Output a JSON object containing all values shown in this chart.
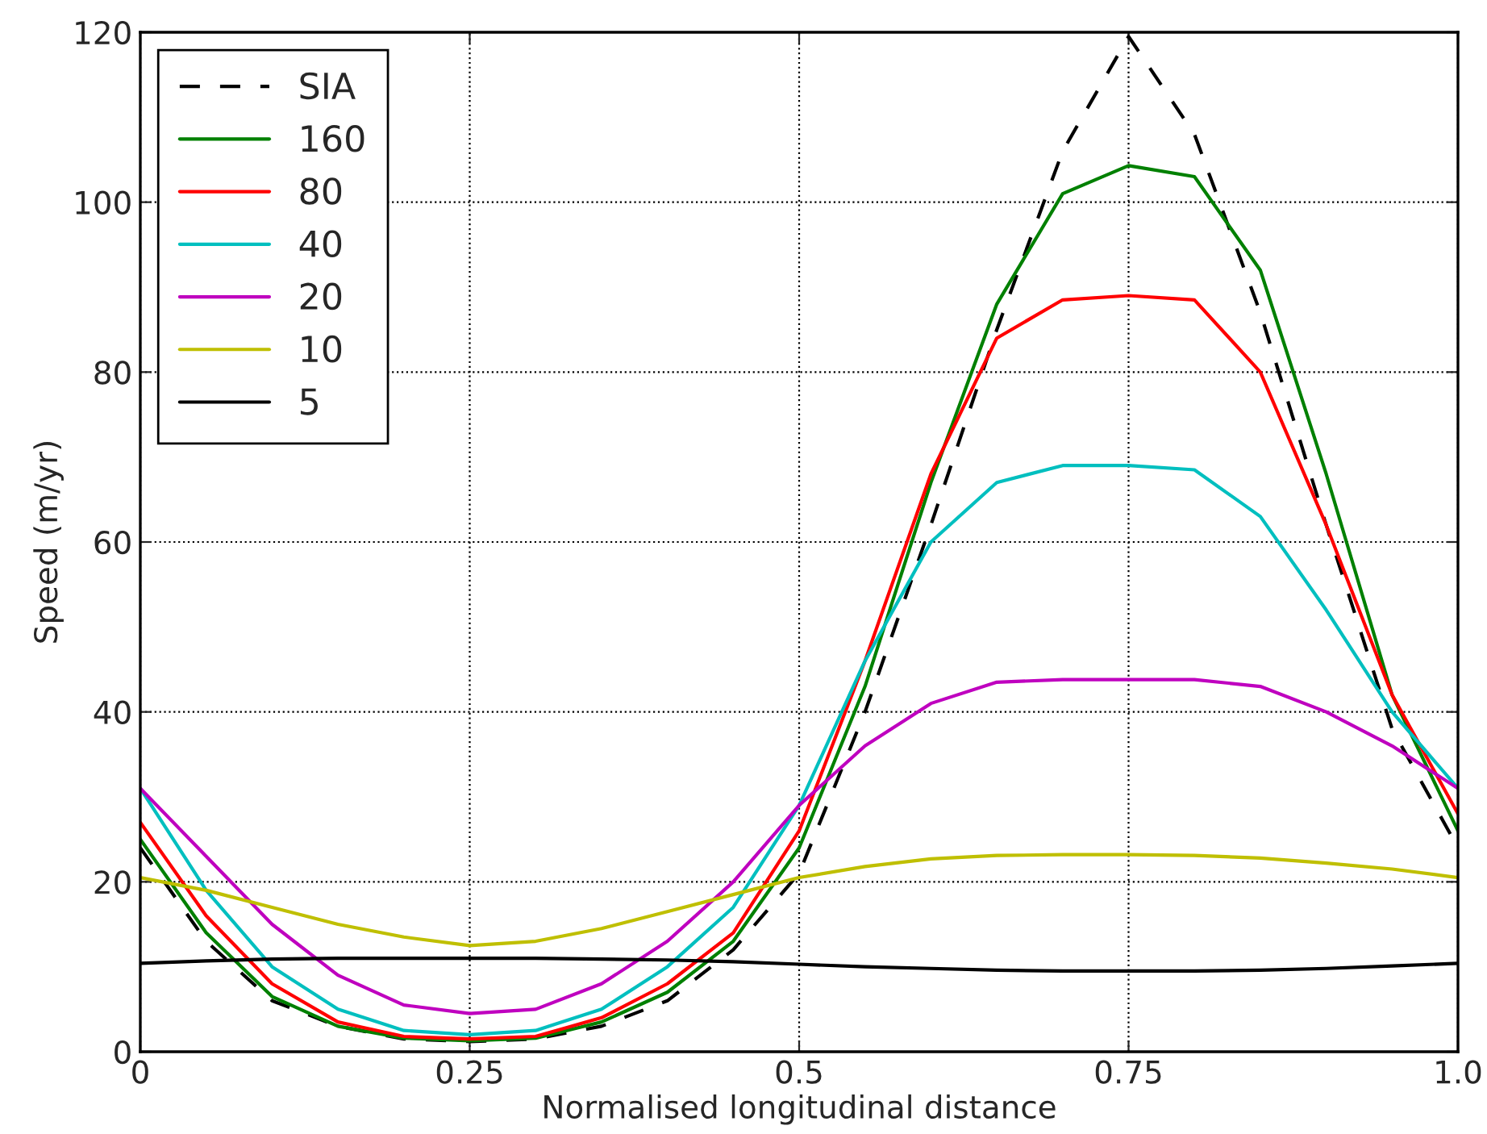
{
  "chart_data": {
    "type": "line",
    "xlabel": "Normalised longitudinal distance",
    "ylabel": "Speed (m/yr)",
    "x": [
      0,
      0.05,
      0.1,
      0.15,
      0.2,
      0.25,
      0.3,
      0.35,
      0.4,
      0.45,
      0.5,
      0.55,
      0.6,
      0.65,
      0.7,
      0.75,
      0.8,
      0.85,
      0.9,
      0.95,
      1.0
    ],
    "series": [
      {
        "name": "SIA",
        "color": "#000000",
        "line_style": "dashed",
        "values": [
          24,
          13,
          6,
          3,
          1.5,
          1.2,
          1.5,
          3,
          6,
          12,
          21,
          40,
          62,
          85,
          106,
          119.5,
          108,
          87,
          62,
          38,
          24
        ]
      },
      {
        "name": "160",
        "color": "#008000",
        "values": [
          25,
          14,
          6.5,
          3,
          1.6,
          1.3,
          1.6,
          3.5,
          7,
          13,
          24,
          43,
          67,
          88,
          101,
          104.3,
          103,
          92,
          68,
          42,
          26
        ]
      },
      {
        "name": "80",
        "color": "#ff0000",
        "values": [
          27,
          16,
          8,
          3.5,
          1.8,
          1.5,
          1.8,
          4,
          8,
          14,
          26,
          46,
          68,
          84,
          88.5,
          89,
          88.5,
          80,
          62,
          42,
          28
        ]
      },
      {
        "name": "40",
        "color": "#00bfbf",
        "values": [
          31,
          19,
          10,
          5,
          2.5,
          2,
          2.5,
          5,
          10,
          17,
          29,
          46,
          60,
          67,
          69,
          69,
          68.5,
          63,
          52,
          40,
          31
        ]
      },
      {
        "name": "20",
        "color": "#bf00bf",
        "values": [
          31,
          23,
          15,
          9,
          5.5,
          4.5,
          5,
          8,
          13,
          20,
          29,
          36,
          41,
          43.5,
          43.8,
          43.8,
          43.8,
          43,
          40,
          36,
          31
        ]
      },
      {
        "name": "10",
        "color": "#bfbf00",
        "values": [
          20.5,
          19,
          17,
          15,
          13.5,
          12.5,
          13,
          14.5,
          16.5,
          18.5,
          20.5,
          21.8,
          22.7,
          23.1,
          23.2,
          23.2,
          23.1,
          22.8,
          22.2,
          21.5,
          20.5
        ]
      },
      {
        "name": "5",
        "color": "#000000",
        "values": [
          10.4,
          10.7,
          10.9,
          11,
          11,
          11,
          11,
          10.9,
          10.8,
          10.6,
          10.3,
          10,
          9.8,
          9.6,
          9.5,
          9.5,
          9.5,
          9.6,
          9.8,
          10.1,
          10.4
        ]
      }
    ],
    "xlim": [
      0,
      1.0
    ],
    "xticks": [
      0,
      0.25,
      0.5,
      0.75,
      {
        "value": 1.0,
        "label": "1.0"
      }
    ],
    "ylim": [
      0,
      120
    ],
    "yticks": [
      0,
      20,
      40,
      60,
      80,
      100,
      120
    ],
    "grid": true,
    "legend": "top left",
    "line_style": "solid"
  }
}
